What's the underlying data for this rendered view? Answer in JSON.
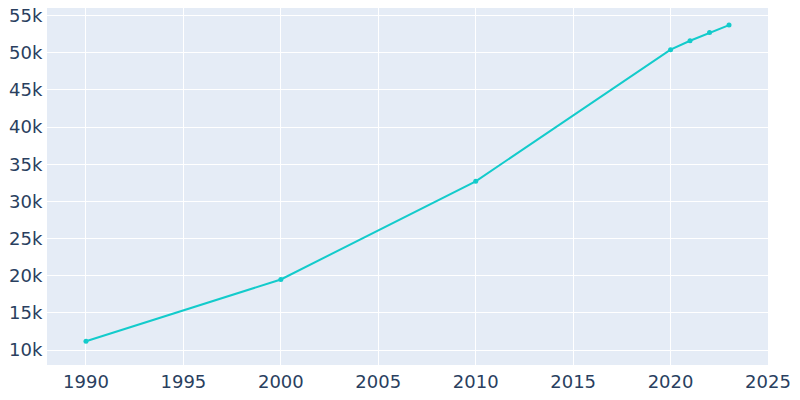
{
  "chart_data": {
    "type": "line",
    "x": [
      1990,
      2000,
      2010,
      2020,
      2021,
      2022,
      2023
    ],
    "values": [
      11200,
      19500,
      32700,
      50400,
      51600,
      52700,
      53700
    ],
    "color": "#13cbcb",
    "marker": "circle",
    "xlim": [
      1988,
      2025
    ],
    "xticks": [
      1990,
      1995,
      2000,
      2005,
      2010,
      2015,
      2020,
      2025
    ],
    "ylim": [
      8000,
      56000
    ],
    "yticks": [
      {
        "value": 10000,
        "label": "10k"
      },
      {
        "value": 15000,
        "label": "15k"
      },
      {
        "value": 20000,
        "label": "20k"
      },
      {
        "value": 25000,
        "label": "25k"
      },
      {
        "value": 30000,
        "label": "30k"
      },
      {
        "value": 35000,
        "label": "35k"
      },
      {
        "value": 40000,
        "label": "40k"
      },
      {
        "value": 45000,
        "label": "45k"
      },
      {
        "value": 50000,
        "label": "50k"
      },
      {
        "value": 55000,
        "label": "55k"
      }
    ],
    "grid": true
  }
}
